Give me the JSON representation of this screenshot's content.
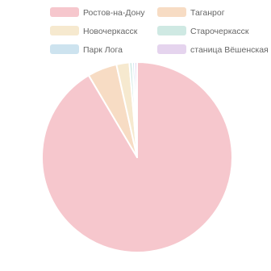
{
  "chart_data": {
    "type": "pie",
    "title": "",
    "legend_position": "top",
    "series": [
      {
        "labels": [
          "Ростов-на-Дону",
          "Таганрог",
          "Новочеркасск",
          "Старочеркасск",
          "Парк Лога",
          "станица Вёшенская"
        ],
        "values": [
          91.5,
          5.0,
          2.2,
          0.5,
          0.4,
          0.4
        ],
        "colors": [
          "#f6c7cd",
          "#f7dcc4",
          "#f6e9cf",
          "#cfe9e3",
          "#cde3ef",
          "#e5d4ee"
        ]
      }
    ]
  }
}
